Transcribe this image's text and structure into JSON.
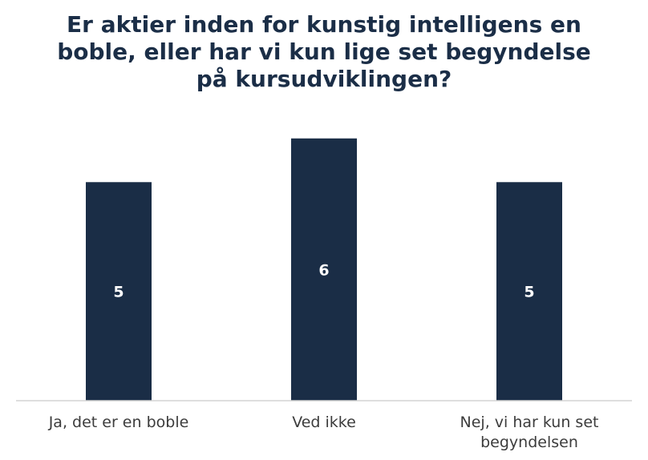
{
  "title_lines": [
    "Er aktier inden for kunstig intelligens en",
    "boble, eller har vi kun lige set begyndelse",
    "på kursudviklingen?"
  ],
  "chart_data": {
    "type": "bar",
    "title": "Er aktier inden for kunstig intelligens en boble, eller har vi kun lige set begyndelse på kursudviklingen?",
    "categories": [
      [
        "Ja, det er en boble"
      ],
      [
        "Ved ikke"
      ],
      [
        "Nej, vi har kun set",
        "begyndelsen"
      ]
    ],
    "values": [
      5,
      6,
      5
    ],
    "xlabel": "",
    "ylabel": "",
    "ylim": [
      0,
      6.6
    ],
    "grid": false,
    "data_labels": true,
    "colors": {
      "bar": "#1a2d46",
      "label": "#ffffff",
      "axis": "#d4d4d4",
      "title": "#1b2e47"
    }
  }
}
